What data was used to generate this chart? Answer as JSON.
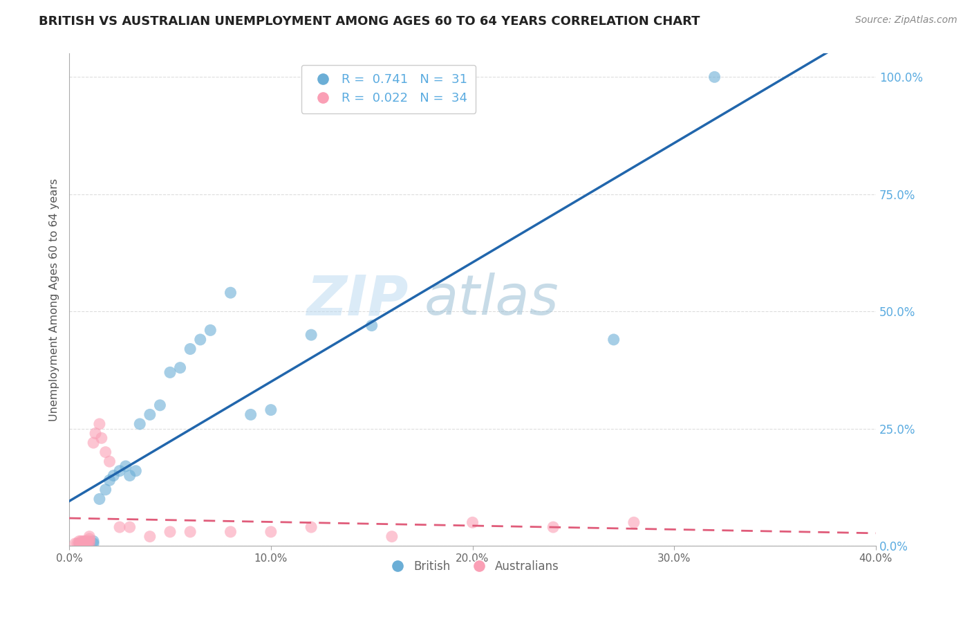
{
  "title": "BRITISH VS AUSTRALIAN UNEMPLOYMENT AMONG AGES 60 TO 64 YEARS CORRELATION CHART",
  "source": "Source: ZipAtlas.com",
  "ylabel": "Unemployment Among Ages 60 to 64 years",
  "xlim": [
    0.0,
    0.4
  ],
  "ylim": [
    0.0,
    1.05
  ],
  "xticks": [
    0.0,
    0.1,
    0.2,
    0.3,
    0.4
  ],
  "yticks_right": [
    0.0,
    0.25,
    0.5,
    0.75,
    1.0
  ],
  "british_color": "#6baed6",
  "australian_color": "#fa9fb5",
  "british_line_color": "#2166ac",
  "australian_line_color": "#e05c7a",
  "legend_R_british": "0.741",
  "legend_N_british": "31",
  "legend_R_australian": "0.022",
  "legend_N_australian": "34",
  "watermark_zip": "ZIP",
  "watermark_atlas": "atlas",
  "british_x": [
    0.005,
    0.007,
    0.008,
    0.009,
    0.01,
    0.01,
    0.012,
    0.012,
    0.015,
    0.018,
    0.02,
    0.022,
    0.025,
    0.028,
    0.03,
    0.033,
    0.035,
    0.04,
    0.045,
    0.05,
    0.055,
    0.06,
    0.065,
    0.07,
    0.08,
    0.09,
    0.1,
    0.12,
    0.15,
    0.27,
    0.32
  ],
  "british_y": [
    0.005,
    0.008,
    0.005,
    0.005,
    0.005,
    0.005,
    0.005,
    0.01,
    0.1,
    0.12,
    0.14,
    0.15,
    0.16,
    0.17,
    0.15,
    0.16,
    0.26,
    0.28,
    0.3,
    0.37,
    0.38,
    0.42,
    0.44,
    0.46,
    0.54,
    0.28,
    0.29,
    0.45,
    0.47,
    0.44,
    1.0
  ],
  "australian_x": [
    0.003,
    0.004,
    0.005,
    0.005,
    0.006,
    0.006,
    0.007,
    0.007,
    0.008,
    0.008,
    0.009,
    0.009,
    0.01,
    0.01,
    0.01,
    0.01,
    0.012,
    0.013,
    0.015,
    0.016,
    0.018,
    0.02,
    0.025,
    0.03,
    0.04,
    0.05,
    0.06,
    0.08,
    0.1,
    0.12,
    0.16,
    0.2,
    0.24,
    0.28
  ],
  "australian_y": [
    0.005,
    0.005,
    0.005,
    0.01,
    0.005,
    0.01,
    0.005,
    0.01,
    0.005,
    0.01,
    0.005,
    0.01,
    0.005,
    0.01,
    0.015,
    0.02,
    0.22,
    0.24,
    0.26,
    0.23,
    0.2,
    0.18,
    0.04,
    0.04,
    0.02,
    0.03,
    0.03,
    0.03,
    0.03,
    0.04,
    0.02,
    0.05,
    0.04,
    0.05
  ]
}
